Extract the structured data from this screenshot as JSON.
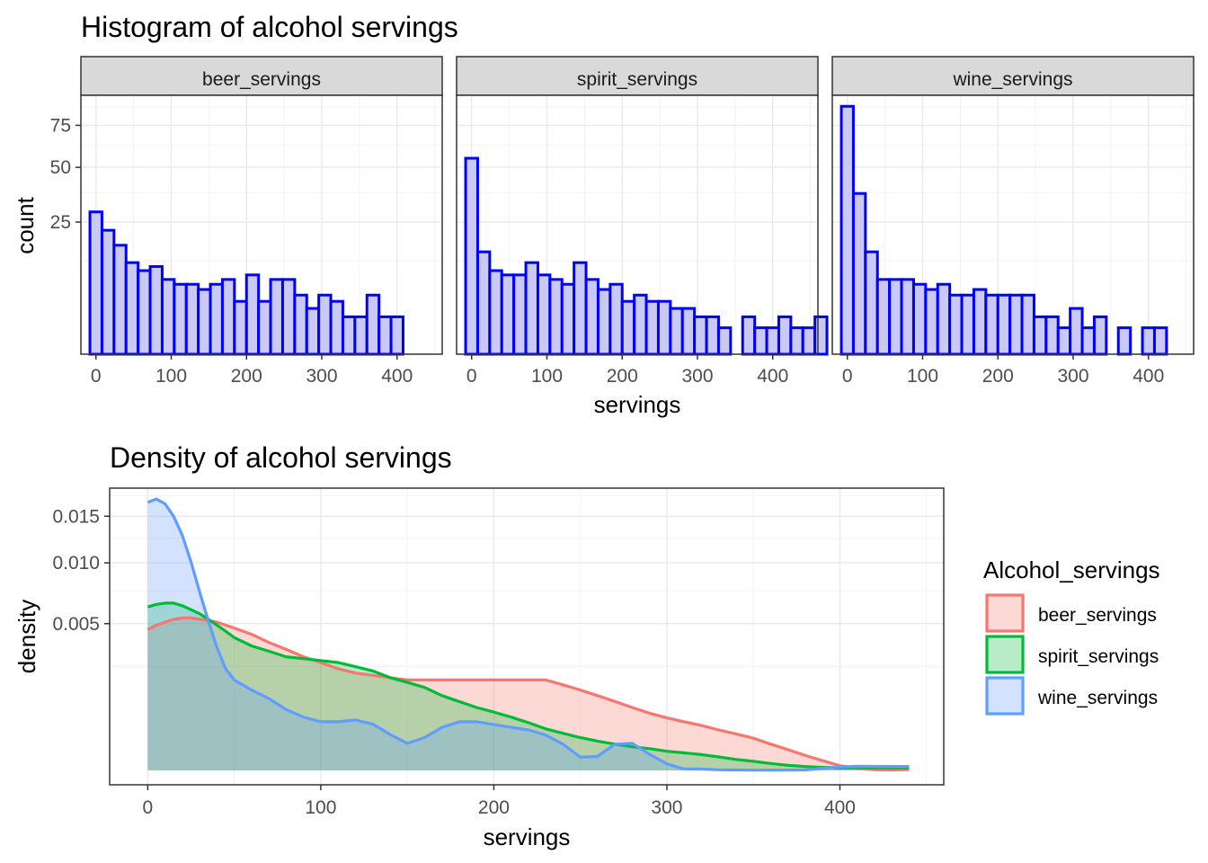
{
  "chart_data": [
    {
      "type": "bar",
      "title": "Histogram of alcohol servings",
      "xlabel": "servings",
      "ylabel": "count",
      "y_scale": "sqrt",
      "xlim": [
        -20,
        460
      ],
      "ylim": [
        0,
        96
      ],
      "x_ticks": [
        0,
        100,
        200,
        300,
        400
      ],
      "y_ticks": [
        25,
        50,
        75
      ],
      "bin_width": 16,
      "bin_start": -8,
      "fill_color": "#c9c9f3",
      "outline_color": "#0000ff",
      "facets": [
        {
          "name": "beer_servings",
          "counts": [
            29,
            22,
            17,
            12,
            10,
            11,
            8,
            7,
            7,
            6,
            7,
            8,
            4,
            9,
            4,
            8,
            8,
            5,
            3,
            5,
            4,
            2,
            2,
            5,
            2,
            2,
            0,
            0,
            0
          ]
        },
        {
          "name": "spirit_servings",
          "counts": [
            55,
            15,
            10,
            9,
            9,
            12,
            9,
            8,
            7,
            12,
            8,
            6,
            7,
            4,
            5,
            4,
            4,
            3,
            3,
            2,
            2,
            1,
            0,
            2,
            1,
            1,
            2,
            1,
            1,
            2
          ]
        },
        {
          "name": "wine_servings",
          "counts": [
            88,
            37,
            15,
            8,
            8,
            8,
            7,
            6,
            7,
            5,
            5,
            6,
            5,
            5,
            5,
            5,
            2,
            2,
            1,
            3,
            1,
            2,
            0,
            1,
            0,
            1,
            1,
            0,
            0,
            0
          ]
        }
      ]
    },
    {
      "type": "area",
      "title": "Density of alcohol servings",
      "xlabel": "servings",
      "ylabel": "density",
      "y_scale": "sqrt",
      "xlim": [
        -22,
        460
      ],
      "ylim": [
        0,
        0.0185
      ],
      "x_ticks": [
        0,
        100,
        200,
        300,
        400
      ],
      "y_ticks": [
        0.005,
        0.01,
        0.015
      ],
      "y_tick_labels": [
        "0.005",
        "0.010",
        "0.015"
      ],
      "legend_title": "Alcohol_servings",
      "legend_position": "right",
      "x": [
        0,
        5,
        10,
        15,
        20,
        25,
        30,
        35,
        40,
        45,
        50,
        60,
        70,
        80,
        90,
        100,
        110,
        120,
        130,
        140,
        150,
        160,
        170,
        180,
        190,
        200,
        210,
        220,
        230,
        240,
        250,
        260,
        270,
        280,
        290,
        300,
        310,
        320,
        330,
        340,
        350,
        360,
        370,
        380,
        390,
        400,
        410,
        420,
        430,
        440
      ],
      "series": [
        {
          "name": "beer_servings",
          "color": "#f8766d",
          "values": [
            0.0046,
            0.0049,
            0.0051,
            0.0053,
            0.0054,
            0.0054,
            0.0053,
            0.0052,
            0.0051,
            0.0049,
            0.0047,
            0.0043,
            0.0038,
            0.0034,
            0.003,
            0.0027,
            0.0024,
            0.0022,
            0.0021,
            0.002,
            0.0019,
            0.0019,
            0.0019,
            0.0019,
            0.0019,
            0.0019,
            0.0019,
            0.0019,
            0.0019,
            0.0017,
            0.0015,
            0.0013,
            0.0011,
            0.00092,
            0.00076,
            0.00064,
            0.00055,
            0.00047,
            0.00038,
            0.00031,
            0.00024,
            0.00016,
            0.0001,
            5.2e-05,
            2.2e-05,
            5e-06,
            1.3e-06,
            1e-07,
            5e-08,
            2e-07
          ]
        },
        {
          "name": "spirit_servings",
          "color": "#00ba38",
          "values": [
            0.0062,
            0.0064,
            0.0065,
            0.0065,
            0.0063,
            0.006,
            0.0057,
            0.0053,
            0.0049,
            0.0045,
            0.0041,
            0.0036,
            0.0033,
            0.003,
            0.0029,
            0.0028,
            0.0027,
            0.0025,
            0.0023,
            0.002,
            0.0018,
            0.0016,
            0.0013,
            0.0011,
            0.00092,
            0.00079,
            0.00066,
            0.00053,
            0.0004,
            0.00032,
            0.00025,
            0.0002,
            0.00016,
            0.00013,
            0.00011,
            8.5e-05,
            7.1e-05,
            5.8e-05,
            4.2e-05,
            2.8e-05,
            1.9e-05,
            1.1e-05,
            6.1e-06,
            3.5e-06,
            2.2e-06,
            1.6e-06,
            1.6e-06,
            1.6e-06,
            1.6e-06,
            1.6e-06
          ]
        },
        {
          "name": "wine_servings",
          "color": "#619cff",
          "values": [
            0.0167,
            0.0171,
            0.0165,
            0.015,
            0.0128,
            0.0101,
            0.0074,
            0.0052,
            0.0035,
            0.0024,
            0.0019,
            0.0015,
            0.0012,
            0.00086,
            0.00066,
            0.00055,
            0.00055,
            0.00059,
            0.0005,
            0.0003,
            0.00017,
            0.00025,
            0.00043,
            0.00055,
            0.00055,
            0.00049,
            0.00043,
            0.00038,
            0.00029,
            0.00016,
            4e-05,
            4.6e-05,
            0.00016,
            0.00017,
            6e-05,
            1e-05,
            5e-07,
            4e-07,
            1e-07,
            5e-08,
            2e-08,
            2e-08,
            3e-08,
            4e-08,
            1e-06,
            2.7e-06,
            3.9e-06,
            3.8e-06,
            3.7e-06,
            3.6e-06
          ]
        }
      ]
    }
  ]
}
